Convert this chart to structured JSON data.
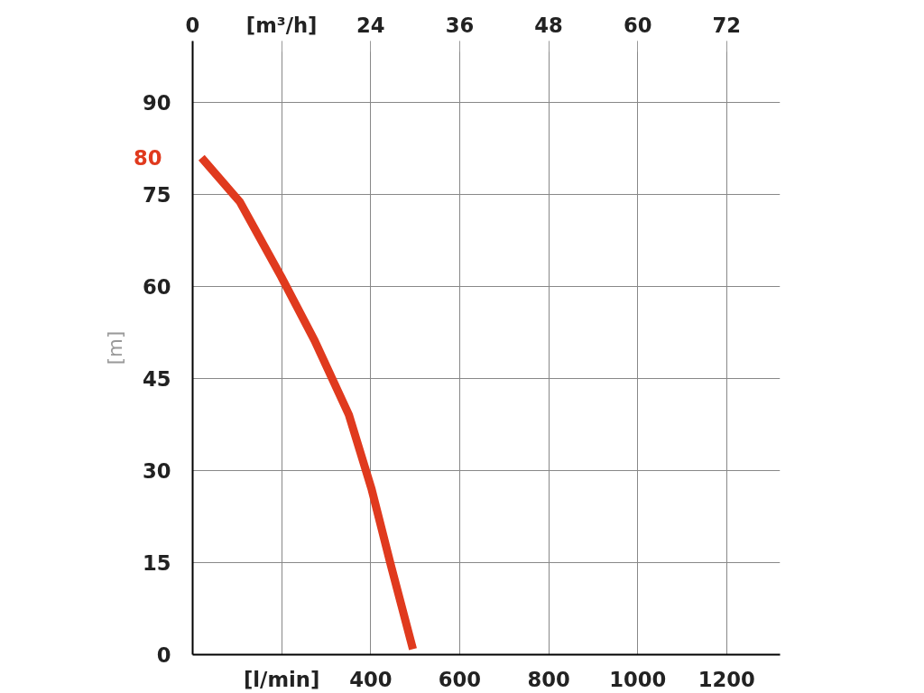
{
  "chart_data": {
    "type": "line",
    "ylabel": "[m]",
    "xlim": [
      0,
      1320
    ],
    "xticks": [
      {
        "value": 200,
        "label": "[l/min]"
      },
      400,
      600,
      800,
      1000,
      1200
    ],
    "x2lim": [
      0,
      79.2
    ],
    "x2ticks": [
      0,
      {
        "value": 12,
        "label": "[m³/h]"
      },
      24,
      36,
      48,
      60,
      72
    ],
    "ylim": [
      0,
      100
    ],
    "yticks": [
      0,
      15,
      30,
      45,
      60,
      75,
      90
    ],
    "series": [
      {
        "color": "#e03a1e",
        "x": [
          20,
          106,
          199,
          274,
          351,
          402,
          445,
          495
        ],
        "values": [
          81,
          73.8,
          61.6,
          51.2,
          39.1,
          27,
          14.7,
          0.9
        ]
      }
    ],
    "annotations": [
      "80"
    ],
    "grid": true,
    "marker": "none",
    "line_style": "solid"
  }
}
